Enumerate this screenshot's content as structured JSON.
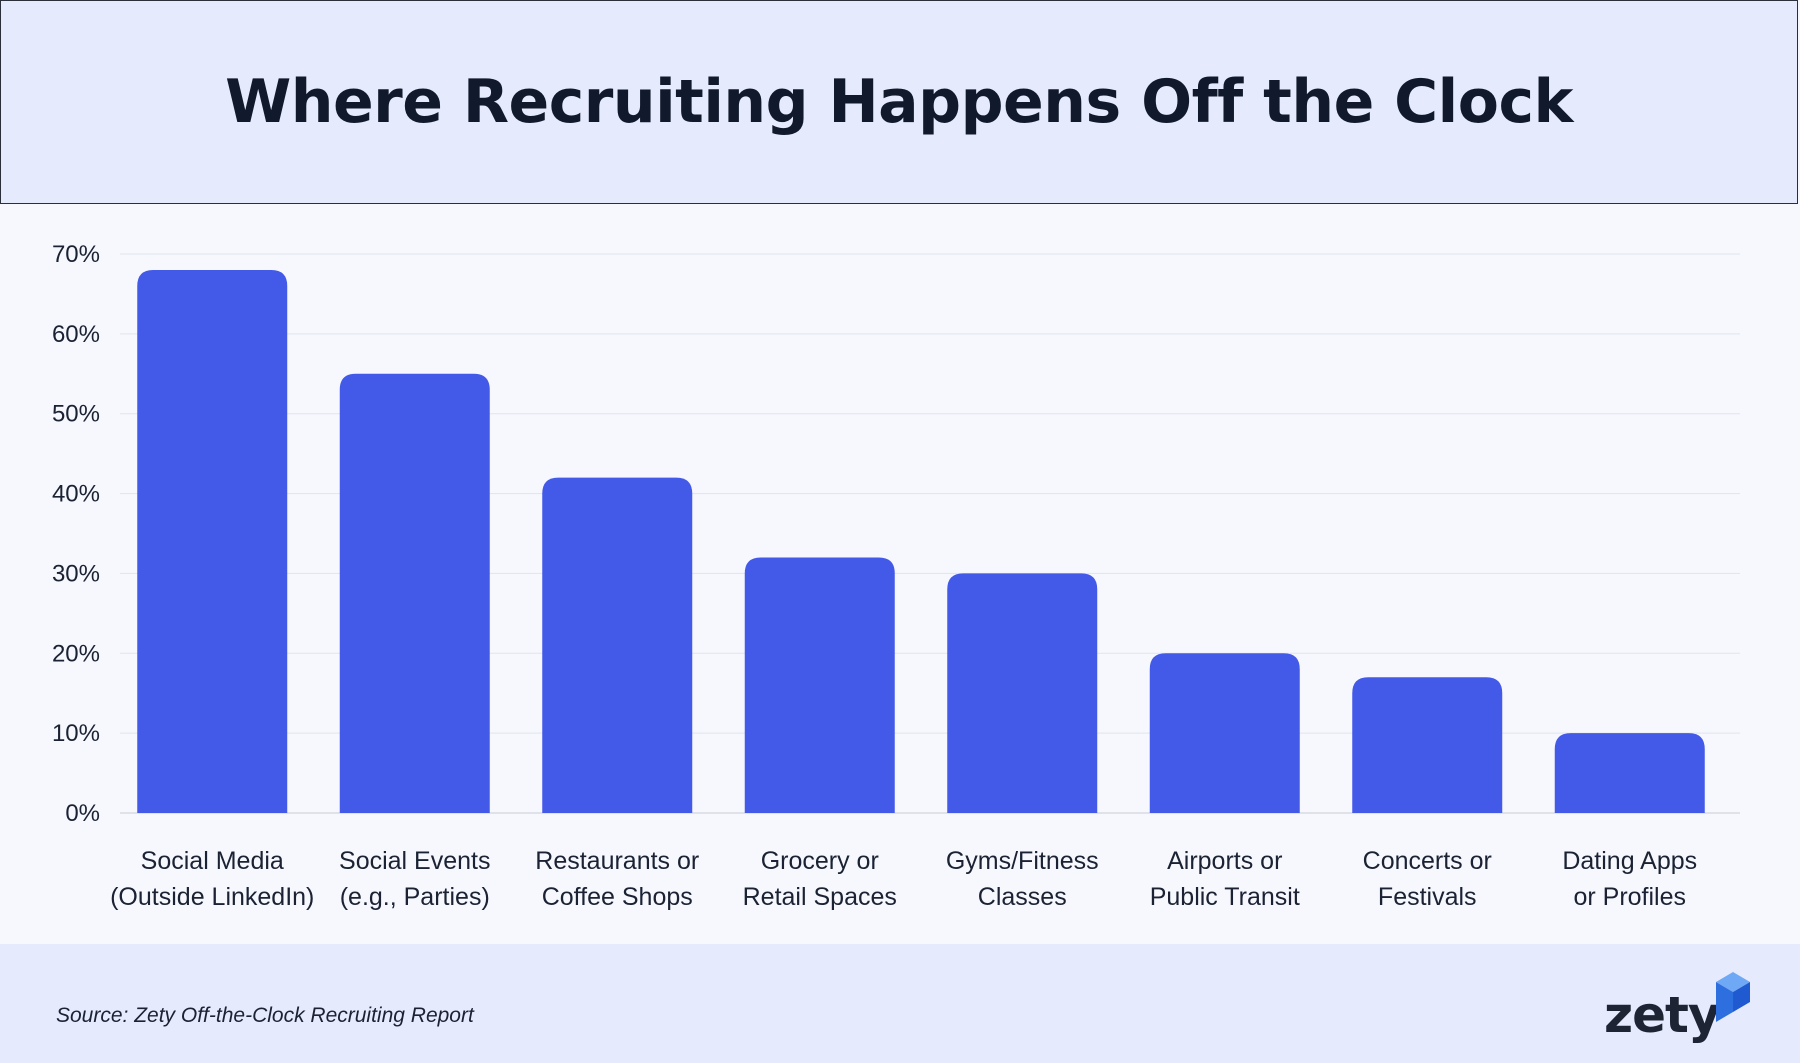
{
  "header": {
    "title": "Where Recruiting Happens Off the Clock"
  },
  "chart_data": {
    "type": "bar",
    "title": "Where Recruiting Happens Off the Clock",
    "xlabel": "",
    "ylabel": "",
    "ylim": [
      0,
      70
    ],
    "yticks": [
      "0%",
      "10%",
      "20%",
      "30%",
      "40%",
      "50%",
      "60%",
      "70%"
    ],
    "grid": true,
    "categories": [
      [
        "Social Media",
        "(Outside LinkedIn)"
      ],
      [
        "Social Events",
        "(e.g., Parties)"
      ],
      [
        "Restaurants or",
        "Coffee Shops"
      ],
      [
        "Grocery or",
        "Retail Spaces"
      ],
      [
        "Gyms/Fitness",
        "Classes"
      ],
      [
        "Airports or",
        "Public Transit"
      ],
      [
        "Concerts or",
        "Festivals"
      ],
      [
        "Dating Apps",
        "or Profiles"
      ]
    ],
    "values": [
      68,
      55,
      42,
      32,
      30,
      20,
      17,
      10
    ],
    "bar_color": "#4359e8"
  },
  "footer": {
    "source": "Source: Zety Off-the-Clock Recruiting Report",
    "logo_text": "zety",
    "logo_icon": "cube-icon"
  }
}
